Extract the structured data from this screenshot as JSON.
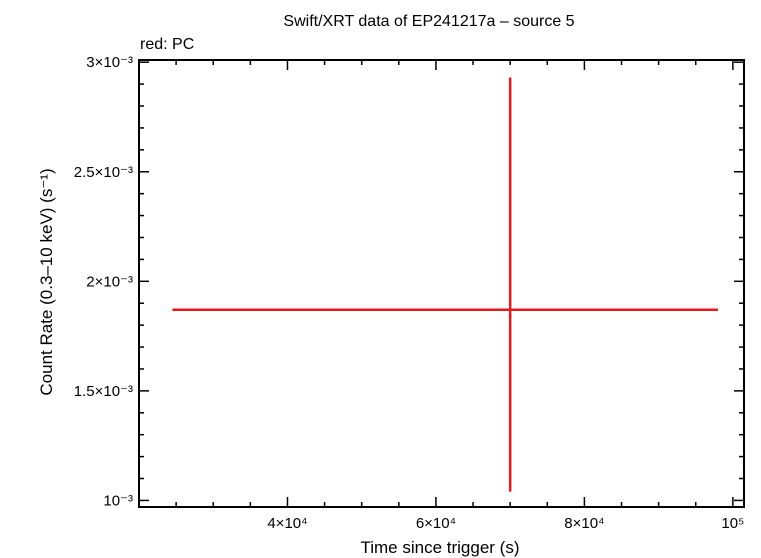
{
  "chart_data": {
    "type": "scatter",
    "title": "Swift/XRT data of EP241217a – source 5",
    "subtitle": "red: PC",
    "xlabel": "Time since trigger (s)",
    "ylabel": "Count Rate (0.3–10 keV) (s⁻¹)",
    "xscale": "linear",
    "yscale": "linear",
    "xlim": [
      20000,
      101500
    ],
    "ylim": [
      0.00097,
      0.00301
    ],
    "x_ticks": [
      {
        "value": 40000,
        "label": "4×10⁴"
      },
      {
        "value": 60000,
        "label": "6×10⁴"
      },
      {
        "value": 80000,
        "label": "8×10⁴"
      },
      {
        "value": 100000,
        "label": "10⁵"
      }
    ],
    "y_ticks": [
      {
        "value": 0.001,
        "label": "10⁻³"
      },
      {
        "value": 0.0015,
        "label": "1.5×10⁻³"
      },
      {
        "value": 0.002,
        "label": "2×10⁻³"
      },
      {
        "value": 0.0025,
        "label": "2.5×10⁻³"
      },
      {
        "value": 0.003,
        "label": "3×10⁻³"
      }
    ],
    "series": [
      {
        "name": "PC",
        "color": "#e41a1c",
        "points": [
          {
            "x": 70000,
            "y": 0.00187,
            "xerr_low": 45500,
            "xerr_high": 28000,
            "yerr_low": 0.00083,
            "yerr_high": 0.00106
          }
        ]
      }
    ]
  }
}
